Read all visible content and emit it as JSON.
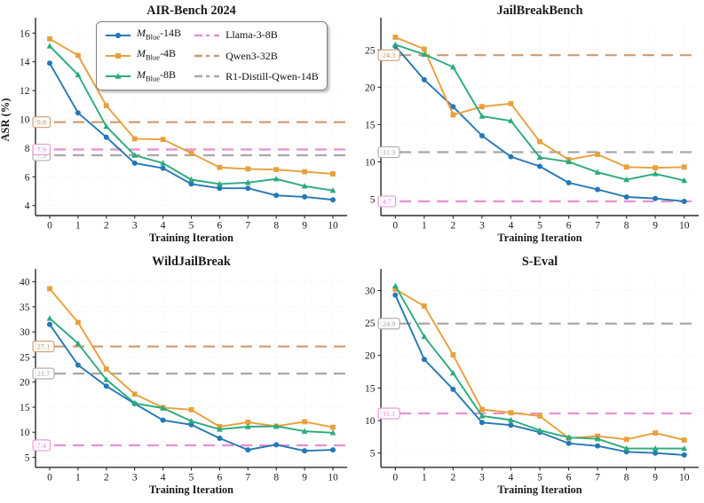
{
  "colors": {
    "blue": "#2578b5",
    "orange": "#e8a03c",
    "green": "#2bab7c",
    "pink": "#e78fd2",
    "tan": "#cf9a6e",
    "gray": "#a8a8a8",
    "grid": "#ececec",
    "axis": "#2b2b2b",
    "text": "#1a1a1a"
  },
  "legend": {
    "models": [
      {
        "label_main": "M",
        "label_sub": "Blue",
        "label_rest": "-14B",
        "color": "blue",
        "marker": "circle"
      },
      {
        "label_main": "M",
        "label_sub": "Blue",
        "label_rest": "-4B",
        "color": "orange",
        "marker": "square"
      },
      {
        "label_main": "M",
        "label_sub": "Blue",
        "label_rest": "-8B",
        "color": "green",
        "marker": "triangle"
      }
    ],
    "baselines": [
      {
        "label": "Llama-3-8B",
        "color": "pink"
      },
      {
        "label": "Qwen3-32B",
        "color": "tan"
      },
      {
        "label": "R1-Distill-Qwen-14B",
        "color": "gray"
      }
    ]
  },
  "chart_data": [
    {
      "type": "line",
      "title": "AIR-Bench 2024",
      "xlabel": "Training Iteration",
      "ylabel": "ASR (%)",
      "x": [
        0,
        1,
        2,
        3,
        4,
        5,
        6,
        7,
        8,
        9,
        10
      ],
      "xlim": [
        -0.5,
        10.5
      ],
      "ylim": [
        3.3,
        16.7
      ],
      "yticks": [
        4,
        6,
        8,
        10,
        12,
        14,
        16
      ],
      "grid": true,
      "show_legend": true,
      "series": [
        {
          "name": "M_Blue-14B",
          "color": "blue",
          "marker": "circle",
          "values": [
            13.9,
            10.45,
            8.75,
            6.95,
            6.6,
            5.5,
            5.2,
            5.2,
            4.7,
            4.6,
            4.4
          ]
        },
        {
          "name": "M_Blue-4B",
          "color": "orange",
          "marker": "square",
          "values": [
            15.6,
            14.45,
            10.95,
            8.65,
            8.6,
            7.65,
            6.65,
            6.55,
            6.5,
            6.35,
            6.2
          ]
        },
        {
          "name": "M_Blue-8B",
          "color": "green",
          "marker": "triangle",
          "values": [
            15.1,
            13.1,
            9.5,
            7.5,
            6.95,
            5.8,
            5.5,
            5.6,
            5.85,
            5.35,
            5.05
          ]
        }
      ],
      "baselines": [
        {
          "name": "Qwen3-32B",
          "color": "tan",
          "value": 9.8
        },
        {
          "name": "R1-Distill-Qwen-14B",
          "color": "gray",
          "value": 7.5
        },
        {
          "name": "Llama-3-8B",
          "color": "pink",
          "value": 7.9
        }
      ]
    },
    {
      "type": "line",
      "title": "JailBreakBench",
      "xlabel": "Training Iteration",
      "ylabel": "",
      "x": [
        0,
        1,
        2,
        3,
        4,
        5,
        6,
        7,
        8,
        9,
        10
      ],
      "xlim": [
        -0.5,
        10.5
      ],
      "ylim": [
        2.8,
        28.6
      ],
      "yticks": [
        5,
        10,
        15,
        20,
        25
      ],
      "grid": true,
      "show_legend": false,
      "series": [
        {
          "name": "M_Blue-14B",
          "color": "blue",
          "marker": "circle",
          "values": [
            25.5,
            21.0,
            17.4,
            13.5,
            10.7,
            9.4,
            7.2,
            6.3,
            5.3,
            5.1,
            4.7
          ]
        },
        {
          "name": "M_Blue-4B",
          "color": "orange",
          "marker": "square",
          "values": [
            26.7,
            25.1,
            16.3,
            17.4,
            17.8,
            12.7,
            10.3,
            11.0,
            9.3,
            9.2,
            9.3
          ]
        },
        {
          "name": "M_Blue-8B",
          "color": "green",
          "marker": "triangle",
          "values": [
            25.7,
            24.4,
            22.7,
            16.1,
            15.5,
            10.6,
            10.0,
            8.6,
            7.6,
            8.4,
            7.5
          ]
        }
      ],
      "baselines": [
        {
          "name": "Qwen3-32B",
          "color": "tan",
          "value": 24.3
        },
        {
          "name": "R1-Distill-Qwen-14B",
          "color": "gray",
          "value": 11.3
        },
        {
          "name": "Llama-3-8B",
          "color": "pink",
          "value": 4.7
        }
      ]
    },
    {
      "type": "line",
      "title": "WildJailBreak",
      "xlabel": "Training Iteration",
      "ylabel": "",
      "x": [
        0,
        1,
        2,
        3,
        4,
        5,
        6,
        7,
        8,
        9,
        10
      ],
      "xlim": [
        -0.5,
        10.5
      ],
      "ylim": [
        3.0,
        41.5
      ],
      "yticks": [
        5,
        10,
        15,
        20,
        25,
        30,
        35,
        40
      ],
      "grid": true,
      "show_legend": false,
      "series": [
        {
          "name": "M_Blue-14B",
          "color": "blue",
          "marker": "circle",
          "values": [
            31.5,
            23.4,
            19.2,
            15.7,
            12.4,
            11.5,
            8.8,
            6.5,
            7.5,
            6.3,
            6.5
          ]
        },
        {
          "name": "M_Blue-4B",
          "color": "orange",
          "marker": "square",
          "values": [
            38.6,
            31.9,
            22.6,
            17.6,
            14.9,
            14.5,
            11.1,
            12.0,
            11.2,
            12.1,
            11.0
          ]
        },
        {
          "name": "M_Blue-8B",
          "color": "green",
          "marker": "triangle",
          "values": [
            32.7,
            27.7,
            20.5,
            15.8,
            14.8,
            12.2,
            10.6,
            11.1,
            11.2,
            10.2,
            9.9
          ]
        }
      ],
      "baselines": [
        {
          "name": "Qwen3-32B",
          "color": "tan",
          "value": 27.1
        },
        {
          "name": "R1-Distill-Qwen-14B",
          "color": "gray",
          "value": 21.7
        },
        {
          "name": "Llama-3-8B",
          "color": "pink",
          "value": 7.4
        }
      ]
    },
    {
      "type": "line",
      "title": "S-Eval",
      "xlabel": "Training Iteration",
      "ylabel": "",
      "x": [
        0,
        1,
        2,
        3,
        4,
        5,
        6,
        7,
        8,
        9,
        10
      ],
      "xlim": [
        -0.5,
        10.5
      ],
      "ylim": [
        2.8,
        32.5
      ],
      "yticks": [
        5,
        10,
        15,
        20,
        25,
        30
      ],
      "grid": true,
      "show_legend": false,
      "series": [
        {
          "name": "M_Blue-14B",
          "color": "blue",
          "marker": "circle",
          "values": [
            29.3,
            19.4,
            14.8,
            9.7,
            9.3,
            8.2,
            6.5,
            6.1,
            5.2,
            5.0,
            4.7
          ]
        },
        {
          "name": "M_Blue-4B",
          "color": "orange",
          "marker": "square",
          "values": [
            30.2,
            27.6,
            20.1,
            11.7,
            11.2,
            10.7,
            7.3,
            7.6,
            7.1,
            8.1,
            7.0
          ]
        },
        {
          "name": "M_Blue-8B",
          "color": "green",
          "marker": "triangle",
          "values": [
            30.7,
            22.9,
            17.3,
            10.7,
            10.1,
            8.5,
            7.4,
            7.2,
            5.7,
            5.7,
            5.7
          ]
        }
      ],
      "baselines": [
        {
          "name": "R1-Distill-Qwen-14B",
          "color": "gray",
          "value": 24.9
        },
        {
          "name": "Llama-3-8B",
          "color": "pink",
          "value": 11.1
        }
      ]
    }
  ]
}
